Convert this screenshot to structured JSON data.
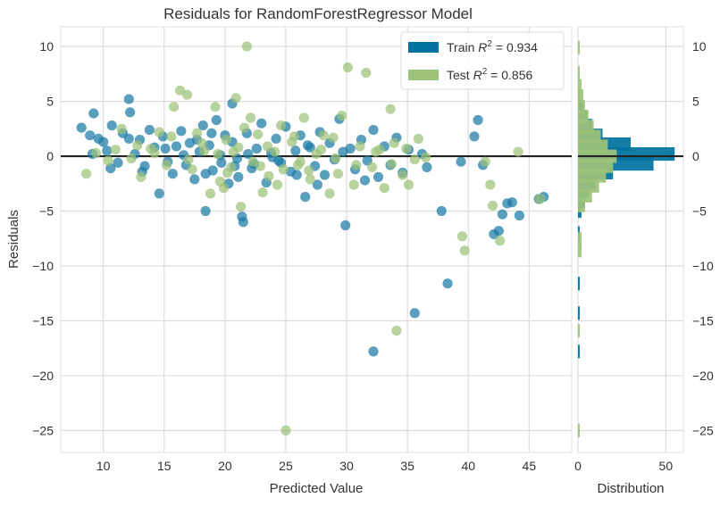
{
  "chart_data": [
    {
      "type": "scatter",
      "title": "Residuals for RandomForestRegressor Model",
      "xlabel": "Predicted Value",
      "ylabel": "Residuals",
      "xlim": [
        6.5,
        48.5
      ],
      "ylim": [
        -27,
        11.8
      ],
      "xticks": [
        10,
        15,
        20,
        25,
        30,
        35,
        40,
        45
      ],
      "yticks": [
        10,
        5,
        0,
        -5,
        -10,
        -15,
        -20,
        -25
      ],
      "ytick_labels": [
        "10",
        "5",
        "0",
        "−5",
        "−10",
        "−15",
        "−20",
        "−25"
      ],
      "grid": true,
      "zero_line": 0,
      "legend": {
        "position": "top-right",
        "entries": [
          {
            "label": "Train R² = 0.934",
            "prefix": "Train ",
            "r2": "0.934",
            "color": "#0072a0"
          },
          {
            "label": "Test R² = 0.856",
            "prefix": "Test ",
            "r2": "0.856",
            "color": "#9dc279"
          }
        ]
      },
      "series": [
        {
          "name": "Train",
          "color": "#1a7aa3",
          "points": [
            [
              8.2,
              2.6
            ],
            [
              8.9,
              1.9
            ],
            [
              9.2,
              3.9
            ],
            [
              9.6,
              1.6
            ],
            [
              10.0,
              1.3
            ],
            [
              10.3,
              0.5
            ],
            [
              10.7,
              2.8
            ],
            [
              11.2,
              -0.6
            ],
            [
              11.6,
              2.1
            ],
            [
              12.1,
              5.2
            ],
            [
              12.2,
              4.0
            ],
            [
              12.6,
              0.2
            ],
            [
              13.0,
              1.5
            ],
            [
              13.4,
              -0.9
            ],
            [
              13.8,
              2.4
            ],
            [
              14.2,
              0.8
            ],
            [
              14.6,
              -3.4
            ],
            [
              14.9,
              1.8
            ],
            [
              15.3,
              -0.5
            ],
            [
              15.7,
              -1.6
            ],
            [
              16.0,
              0.9
            ],
            [
              16.4,
              2.3
            ],
            [
              16.8,
              -0.8
            ],
            [
              17.1,
              1.2
            ],
            [
              17.5,
              -2.1
            ],
            [
              17.9,
              0.4
            ],
            [
              18.2,
              2.8
            ],
            [
              18.4,
              -5.0
            ],
            [
              18.7,
              1.0
            ],
            [
              19.0,
              -1.3
            ],
            [
              19.3,
              3.3
            ],
            [
              19.6,
              0.1
            ],
            [
              20.0,
              1.9
            ],
            [
              20.3,
              -2.5
            ],
            [
              20.6,
              4.8
            ],
            [
              21.0,
              -0.2
            ],
            [
              21.4,
              -5.5
            ],
            [
              21.5,
              -6.0
            ],
            [
              21.8,
              2.1
            ],
            [
              22.2,
              -1.1
            ],
            [
              22.6,
              0.7
            ],
            [
              23.0,
              3.0
            ],
            [
              23.4,
              -2.4
            ],
            [
              23.8,
              0.3
            ],
            [
              24.2,
              1.6
            ],
            [
              24.6,
              -0.6
            ],
            [
              25.0,
              2.7
            ],
            [
              25.4,
              -1.4
            ],
            [
              25.8,
              0.5
            ],
            [
              26.2,
              1.9
            ],
            [
              26.6,
              -3.7
            ],
            [
              27.0,
              0.8
            ],
            [
              27.4,
              -0.9
            ],
            [
              27.8,
              2.2
            ],
            [
              28.2,
              -1.7
            ],
            [
              28.6,
              1.2
            ],
            [
              29.0,
              -0.3
            ],
            [
              29.4,
              3.4
            ],
            [
              29.9,
              -6.3
            ],
            [
              30.3,
              0.7
            ],
            [
              30.7,
              -1.2
            ],
            [
              31.2,
              1.5
            ],
            [
              31.7,
              -0.4
            ],
            [
              32.2,
              2.4
            ],
            [
              32.6,
              -1.9
            ],
            [
              33.1,
              0.9
            ],
            [
              33.6,
              -0.8
            ],
            [
              34.1,
              1.7
            ],
            [
              34.6,
              -1.5
            ],
            [
              35.1,
              0.6
            ],
            [
              35.6,
              -14.3
            ],
            [
              36.2,
              0.2
            ],
            [
              36.6,
              -1.0
            ],
            [
              37.8,
              -5.0
            ],
            [
              38.3,
              -11.6
            ],
            [
              39.4,
              -0.5
            ],
            [
              40.5,
              1.8
            ],
            [
              40.8,
              3.3
            ],
            [
              41.2,
              -0.8
            ],
            [
              42.8,
              -5.3
            ],
            [
              43.2,
              -4.3
            ],
            [
              44.2,
              -5.4
            ],
            [
              32.2,
              -17.8
            ],
            [
              18.4,
              -1.6
            ],
            [
              21.9,
              0.2
            ],
            [
              20.8,
              -0.9
            ],
            [
              23.9,
              -0.1
            ],
            [
              25.9,
              -1.7
            ],
            [
              27.6,
              -2.6
            ],
            [
              19.7,
              -0.6
            ],
            [
              18.9,
              2.1
            ],
            [
              24.4,
              -0.4
            ],
            [
              26.8,
              1.0
            ],
            [
              29.7,
              0.4
            ],
            [
              31.5,
              -2.2
            ],
            [
              16.6,
              0.1
            ],
            [
              13.2,
              -1.4
            ],
            [
              12.1,
              1.6
            ],
            [
              10.6,
              -1.1
            ],
            [
              9.1,
              0.2
            ],
            [
              42.1,
              -7.1
            ],
            [
              42.5,
              -6.8
            ],
            [
              43.6,
              -4.2
            ],
            [
              46.2,
              -3.7
            ],
            [
              45.8,
              -3.9
            ],
            [
              20.6,
              1.3
            ],
            [
              22.4,
              -0.7
            ],
            [
              21.1,
              -1.9
            ],
            [
              17.7,
              1.5
            ],
            [
              15.1,
              0.7
            ]
          ]
        },
        {
          "name": "Test",
          "color": "#9dc279",
          "points": [
            [
              8.6,
              -1.6
            ],
            [
              9.4,
              0.3
            ],
            [
              10.4,
              -0.4
            ],
            [
              11.5,
              2.5
            ],
            [
              12.3,
              -0.2
            ],
            [
              13.1,
              -1.9
            ],
            [
              13.9,
              0.7
            ],
            [
              14.6,
              2.2
            ],
            [
              15.2,
              -0.8
            ],
            [
              15.8,
              4.5
            ],
            [
              16.3,
              6.0
            ],
            [
              16.9,
              5.6
            ],
            [
              17.3,
              -1.2
            ],
            [
              17.7,
              2.1
            ],
            [
              18.3,
              0.5
            ],
            [
              18.8,
              -3.4
            ],
            [
              19.2,
              4.5
            ],
            [
              19.6,
              -2.3
            ],
            [
              20.1,
              1.5
            ],
            [
              20.5,
              -1.0
            ],
            [
              20.9,
              5.3
            ],
            [
              21.3,
              -4.6
            ],
            [
              21.8,
              10.0
            ],
            [
              22.3,
              -0.5
            ],
            [
              22.7,
              2.0
            ],
            [
              23.1,
              -3.3
            ],
            [
              23.6,
              -1.8
            ],
            [
              24.1,
              0.4
            ],
            [
              24.6,
              2.8
            ],
            [
              25.0,
              -25.0
            ],
            [
              25.5,
              1.3
            ],
            [
              26.0,
              -0.8
            ],
            [
              26.5,
              3.5
            ],
            [
              27.0,
              -2.1
            ],
            [
              27.5,
              0.2
            ],
            [
              28.1,
              1.9
            ],
            [
              28.6,
              -3.4
            ],
            [
              29.1,
              -0.2
            ],
            [
              29.6,
              3.7
            ],
            [
              30.1,
              8.1
            ],
            [
              30.6,
              -2.6
            ],
            [
              31.1,
              0.9
            ],
            [
              31.6,
              7.6
            ],
            [
              32.1,
              -1.0
            ],
            [
              32.7,
              0.6
            ],
            [
              33.1,
              -2.9
            ],
            [
              33.6,
              4.3
            ],
            [
              34.1,
              -15.9
            ],
            [
              34.6,
              -1.7
            ],
            [
              35.1,
              -2.6
            ],
            [
              35.6,
              -0.3
            ],
            [
              39.5,
              -7.3
            ],
            [
              39.7,
              -8.6
            ],
            [
              41.4,
              -0.5
            ],
            [
              41.8,
              -2.6
            ],
            [
              42.0,
              -4.5
            ],
            [
              42.6,
              -7.7
            ],
            [
              45.9,
              -3.9
            ],
            [
              44.1,
              0.4
            ],
            [
              21.1,
              0.8
            ],
            [
              22.1,
              3.5
            ],
            [
              20.2,
              -1.5
            ],
            [
              23.5,
              0.9
            ],
            [
              24.8,
              -1.2
            ],
            [
              26.2,
              -0.5
            ],
            [
              27.9,
              0.6
            ],
            [
              19.4,
              0.2
            ],
            [
              18.1,
              1.2
            ],
            [
              17.0,
              -0.3
            ],
            [
              15.6,
              1.8
            ],
            [
              14.2,
              0.3
            ],
            [
              12.8,
              1.0
            ],
            [
              11.0,
              0.6
            ],
            [
              28.9,
              1.7
            ],
            [
              30.8,
              -0.8
            ],
            [
              32.4,
              0.4
            ],
            [
              33.9,
              1.2
            ],
            [
              35.9,
              1.6
            ],
            [
              36.5,
              -0.1
            ],
            [
              21.6,
              2.6
            ],
            [
              22.9,
              -0.9
            ],
            [
              20.7,
              0.4
            ],
            [
              24.3,
              -2.6
            ],
            [
              25.7,
              1.8
            ],
            [
              26.9,
              -1.3
            ],
            [
              29.3,
              -1.6
            ],
            [
              33.7,
              -0.7
            ],
            [
              34.9,
              0.7
            ],
            [
              19.9,
              -2.9
            ]
          ]
        }
      ]
    },
    {
      "type": "bar",
      "orientation": "horizontal",
      "xlabel": "Distribution",
      "xticks": [
        0,
        50
      ],
      "xlim": [
        0,
        60
      ],
      "bin_width": 1.23,
      "series": [
        {
          "name": "Train",
          "color": "#0072a0",
          "bins": [
            [
              -17.8,
              1
            ],
            [
              -14.3,
              1
            ],
            [
              -11.6,
              1
            ],
            [
              -7.0,
              1
            ],
            [
              -5.0,
              2
            ],
            [
              -4.1,
              4
            ],
            [
              -3.2,
              6
            ],
            [
              -2.4,
              10
            ],
            [
              -1.5,
              20
            ],
            [
              -0.7,
              43
            ],
            [
              0.2,
              55
            ],
            [
              1.1,
              30
            ],
            [
              1.9,
              14
            ],
            [
              2.8,
              8
            ],
            [
              3.6,
              5
            ],
            [
              4.5,
              3
            ],
            [
              5.3,
              1
            ]
          ]
        },
        {
          "name": "Test",
          "color": "#9dc279",
          "bins": [
            [
              -25.0,
              1
            ],
            [
              -15.9,
              1
            ],
            [
              -8.6,
              2
            ],
            [
              -7.5,
              2
            ],
            [
              -4.5,
              4
            ],
            [
              -3.6,
              8
            ],
            [
              -2.7,
              12
            ],
            [
              -1.8,
              16
            ],
            [
              -0.9,
              20
            ],
            [
              0.0,
              22
            ],
            [
              0.9,
              17
            ],
            [
              1.8,
              13
            ],
            [
              2.7,
              9
            ],
            [
              3.6,
              6
            ],
            [
              4.5,
              4
            ],
            [
              5.5,
              3
            ],
            [
              6.4,
              2
            ],
            [
              7.6,
              1
            ],
            [
              9.9,
              1
            ]
          ]
        }
      ]
    }
  ]
}
